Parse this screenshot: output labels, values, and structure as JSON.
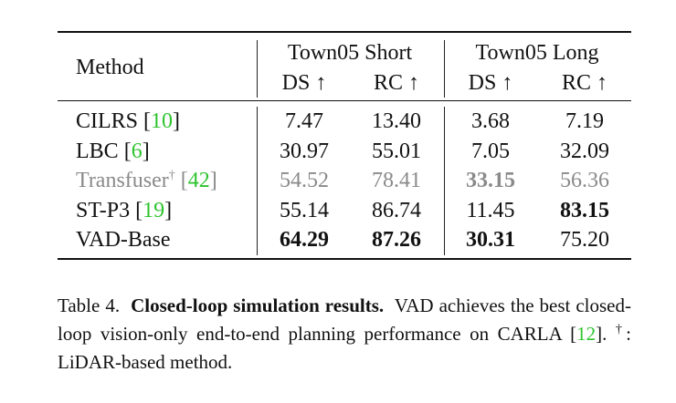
{
  "table": {
    "header": {
      "method": "Method",
      "groups": [
        "Town05 Short",
        "Town05 Long"
      ],
      "subcols": [
        "DS ↑",
        "RC ↑",
        "DS ↑",
        "RC ↑"
      ]
    },
    "rows": [
      {
        "name": "CILRS",
        "cite": "10",
        "dagger": "",
        "gray": false,
        "values": [
          "7.47",
          "13.40",
          "3.68",
          "7.19"
        ],
        "bold": [
          false,
          false,
          false,
          false
        ]
      },
      {
        "name": "LBC",
        "cite": "6",
        "dagger": "",
        "gray": false,
        "values": [
          "30.97",
          "55.01",
          "7.05",
          "32.09"
        ],
        "bold": [
          false,
          false,
          false,
          false
        ]
      },
      {
        "name": "Transfuser",
        "cite": "42",
        "dagger": "†",
        "gray": true,
        "values": [
          "54.52",
          "78.41",
          "33.15",
          "56.36"
        ],
        "bold": [
          false,
          false,
          true,
          false
        ]
      },
      {
        "name": "ST-P3",
        "cite": "19",
        "dagger": "",
        "gray": false,
        "values": [
          "55.14",
          "86.74",
          "11.45",
          "83.15"
        ],
        "bold": [
          false,
          false,
          false,
          true
        ]
      },
      {
        "name": "VAD-Base",
        "cite": "",
        "dagger": "",
        "gray": false,
        "values": [
          "64.29",
          "87.26",
          "30.31",
          "75.20"
        ],
        "bold": [
          true,
          true,
          true,
          false
        ]
      }
    ]
  },
  "caption": {
    "label": "Table 4.",
    "title": "Closed-loop simulation results.",
    "text1": "VAD achieves the best closed-loop vision-only end-to-end planning performance on CARLA [",
    "cite": "12",
    "text2": "].",
    "dagger": "†",
    "text3": ": LiDAR-based method."
  },
  "colors": {
    "citation": "#2ec42e",
    "gray_row": "#8a8a8a"
  }
}
